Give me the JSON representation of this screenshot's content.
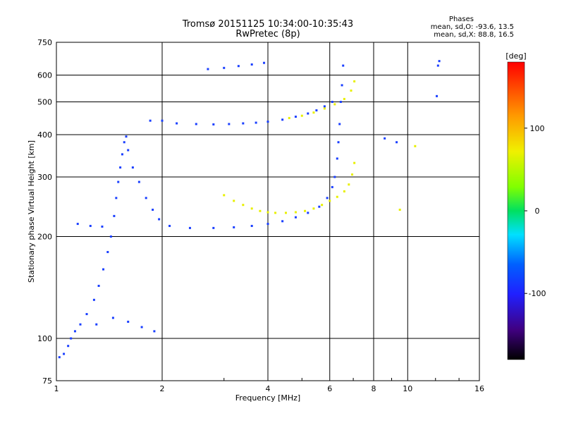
{
  "header": {
    "title_line1": "Tromsø 20151125 10:34:00-10:35:43",
    "title_line2": "RwPretec (8p)",
    "phase_title": "Phases",
    "phase_line1": "mean, sd,O: -93.6, 13.5",
    "phase_line2": "mean, sd,X:  88.8, 16.5"
  },
  "colorbar": {
    "unit": "[deg]",
    "ticks": [
      {
        "value": 100,
        "label": "100"
      },
      {
        "value": 0,
        "label": "0"
      },
      {
        "value": -100,
        "label": "-100"
      }
    ]
  },
  "chart_data": {
    "type": "scatter",
    "title": "Tromsø 20151125 10:34:00-10:35:43",
    "subtitle": "RwPretec (8p)",
    "xlabel": "Frequency [MHz]",
    "ylabel": "Stationary phase Virtual Height [km]",
    "xscale": "log",
    "yscale": "log",
    "xlim": [
      1,
      16
    ],
    "ylim": [
      75,
      750
    ],
    "xticks": [
      {
        "value": 1,
        "label": "1"
      },
      {
        "value": 2,
        "label": "2"
      },
      {
        "value": 4,
        "label": "4"
      },
      {
        "value": 6,
        "label": "6"
      },
      {
        "value": 8,
        "label": "8"
      },
      {
        "value": 10,
        "label": "10"
      },
      {
        "value": 16,
        "label": "16"
      }
    ],
    "yticks": [
      {
        "value": 75,
        "label": "75"
      },
      {
        "value": 100,
        "label": "100"
      },
      {
        "value": 200,
        "label": "200"
      },
      {
        "value": 300,
        "label": "300"
      },
      {
        "value": 400,
        "label": "400"
      },
      {
        "value": 500,
        "label": "500"
      },
      {
        "value": 600,
        "label": "600"
      },
      {
        "value": 750,
        "label": "750"
      }
    ],
    "grid": true,
    "colorbar": {
      "label": "[deg]",
      "range": [
        -180,
        180
      ],
      "ticks": [
        100,
        0,
        -100
      ]
    },
    "series": [
      {
        "mode": "O",
        "phase": -95,
        "color": "#1a3fff",
        "points": [
          [
            1.02,
            88
          ],
          [
            1.05,
            90
          ],
          [
            1.08,
            95
          ],
          [
            1.1,
            100
          ],
          [
            1.13,
            105
          ],
          [
            1.17,
            110
          ],
          [
            1.22,
            118
          ],
          [
            1.28,
            130
          ],
          [
            1.32,
            143
          ],
          [
            1.36,
            160
          ],
          [
            1.4,
            180
          ],
          [
            1.43,
            200
          ],
          [
            1.46,
            230
          ],
          [
            1.48,
            260
          ],
          [
            1.5,
            290
          ],
          [
            1.52,
            320
          ],
          [
            1.54,
            350
          ],
          [
            1.56,
            380
          ],
          [
            1.58,
            395
          ],
          [
            1.6,
            360
          ],
          [
            1.65,
            320
          ],
          [
            1.72,
            290
          ],
          [
            1.8,
            260
          ],
          [
            1.88,
            240
          ],
          [
            1.96,
            225
          ],
          [
            2.1,
            215
          ],
          [
            2.4,
            212
          ],
          [
            2.8,
            212
          ],
          [
            3.2,
            213
          ],
          [
            3.6,
            215
          ],
          [
            4.0,
            218
          ],
          [
            4.4,
            222
          ],
          [
            4.8,
            228
          ],
          [
            5.2,
            235
          ],
          [
            5.6,
            245
          ],
          [
            5.9,
            260
          ],
          [
            6.1,
            280
          ],
          [
            6.2,
            300
          ],
          [
            6.3,
            340
          ],
          [
            6.35,
            380
          ],
          [
            6.4,
            430
          ],
          [
            6.45,
            500
          ],
          [
            6.5,
            560
          ],
          [
            6.55,
            640
          ],
          [
            1.85,
            440
          ],
          [
            2.0,
            440
          ],
          [
            2.2,
            432
          ],
          [
            2.5,
            430
          ],
          [
            2.8,
            429
          ],
          [
            3.1,
            430
          ],
          [
            3.4,
            432
          ],
          [
            3.7,
            434
          ],
          [
            4.0,
            437
          ],
          [
            4.4,
            443
          ],
          [
            4.8,
            452
          ],
          [
            5.2,
            462
          ],
          [
            5.5,
            472
          ],
          [
            5.8,
            485
          ],
          [
            6.1,
            500
          ],
          [
            2.7,
            625
          ],
          [
            3.0,
            630
          ],
          [
            3.3,
            638
          ],
          [
            3.6,
            645
          ],
          [
            3.9,
            652
          ],
          [
            1.15,
            218
          ],
          [
            1.25,
            215
          ],
          [
            1.35,
            214
          ],
          [
            1.3,
            110
          ],
          [
            1.45,
            115
          ],
          [
            1.6,
            112
          ],
          [
            1.75,
            108
          ],
          [
            1.9,
            105
          ],
          [
            8.6,
            390
          ],
          [
            9.3,
            380
          ],
          [
            12.1,
            520
          ],
          [
            12.2,
            640
          ],
          [
            12.3,
            660
          ]
        ]
      },
      {
        "mode": "X",
        "phase": 90,
        "color": "#e8f000",
        "points": [
          [
            3.0,
            265
          ],
          [
            3.2,
            255
          ],
          [
            3.4,
            248
          ],
          [
            3.6,
            242
          ],
          [
            3.8,
            238
          ],
          [
            4.0,
            236
          ],
          [
            4.2,
            235
          ],
          [
            4.5,
            235
          ],
          [
            4.8,
            236
          ],
          [
            5.1,
            238
          ],
          [
            5.4,
            242
          ],
          [
            5.7,
            248
          ],
          [
            6.0,
            255
          ],
          [
            6.3,
            262
          ],
          [
            6.6,
            272
          ],
          [
            6.8,
            285
          ],
          [
            6.95,
            305
          ],
          [
            7.05,
            330
          ],
          [
            4.6,
            448
          ],
          [
            5.0,
            455
          ],
          [
            5.4,
            465
          ],
          [
            5.8,
            478
          ],
          [
            6.2,
            492
          ],
          [
            6.6,
            510
          ],
          [
            6.9,
            540
          ],
          [
            7.05,
            575
          ],
          [
            9.5,
            240
          ],
          [
            10.5,
            370
          ]
        ]
      }
    ]
  }
}
